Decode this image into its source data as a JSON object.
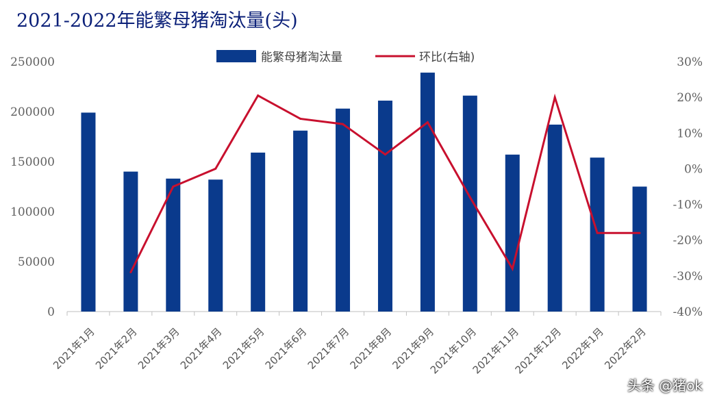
{
  "chart_data": {
    "type": "bar",
    "title": "2021-2022年能繁母猪淘汰量(头)",
    "categories": [
      "2021年1月",
      "2021年2月",
      "2021年3月",
      "2021年4月",
      "2021年5月",
      "2021年6月",
      "2021年7月",
      "2021年8月",
      "2021年9月",
      "2021年10月",
      "2021年11月",
      "2021年12月",
      "2022年1月",
      "2022年2月"
    ],
    "series": [
      {
        "name": "能繁母猪淘汰量",
        "type": "bar",
        "axis": "left",
        "color": "#0a3a8c",
        "values": [
          199000,
          140000,
          133000,
          132000,
          159000,
          181000,
          203000,
          211000,
          239000,
          216000,
          157000,
          187000,
          154000,
          125000
        ]
      },
      {
        "name": "环比(右轴)",
        "type": "line",
        "axis": "right",
        "color": "#c8102e",
        "values": [
          null,
          -0.29,
          -0.05,
          0.0,
          0.205,
          0.14,
          0.125,
          0.04,
          0.13,
          -0.08,
          -0.28,
          0.2,
          -0.18,
          -0.18
        ]
      }
    ],
    "ylim": [
      0,
      250000
    ],
    "yticks": [
      "250000",
      "200000",
      "150000",
      "100000",
      "50000",
      "0"
    ],
    "y2lim": [
      -0.4,
      0.3
    ],
    "y2ticks": [
      "30%",
      "20%",
      "10%",
      "0%",
      "-10%",
      "-20%",
      "-30%",
      "-40%"
    ],
    "legend_position": "top-center",
    "grid": false
  },
  "watermark": "头条 @猪ok"
}
